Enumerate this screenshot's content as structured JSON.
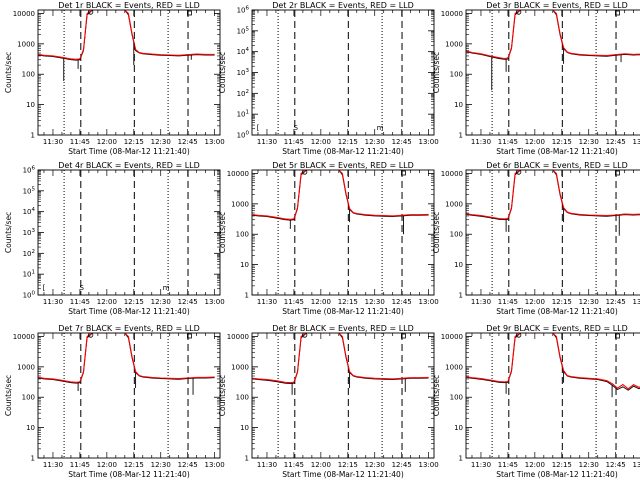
{
  "figure": {
    "shared": {
      "xlabel": "Start Time (08-Mar-12 11:21:40)",
      "ylabel": "Counts/sec",
      "x_tick_labels": [
        "11:30",
        "11:45",
        "12:00",
        "12:15",
        "12:30",
        "12:45",
        "13:00"
      ],
      "x_ticks_minutes": [
        30,
        45,
        60,
        75,
        90,
        105,
        120
      ],
      "x_range_minutes": [
        21.67,
        123
      ],
      "dashed_lines_minutes": [
        45.5,
        75.3,
        105.2
      ],
      "dotted_lines_minutes": [
        36.2,
        94.1
      ],
      "events_color": "#000000",
      "lld_color": "#ff0000"
    }
  },
  "chart_data": [
    {
      "type": "line",
      "title": "Det 1r BLACK = Events, RED = LLD",
      "panel": "det-1r",
      "yscale": "log",
      "ylim": [
        1,
        13000
      ],
      "y_tick_labels": [
        "1",
        "10",
        "100",
        "1000",
        "10000"
      ],
      "y_tick_values": [
        1,
        10,
        100,
        1000,
        10000
      ],
      "x": [
        22,
        25,
        30,
        35,
        40,
        43,
        45,
        47,
        49,
        52,
        55,
        60,
        65,
        70,
        72,
        74,
        76,
        78,
        80,
        85,
        90,
        95,
        100,
        105,
        110,
        115,
        120
      ],
      "series": [
        {
          "name": "Events",
          "values": [
            430,
            400,
            380,
            340,
            300,
            290,
            300,
            600,
            9000,
            13000,
            13000,
            13000,
            13000,
            13000,
            9000,
            2000,
            600,
            500,
            470,
            440,
            420,
            410,
            400,
            420,
            440,
            430,
            430
          ]
        },
        {
          "name": "LLD",
          "values": [
            450,
            420,
            400,
            360,
            320,
            310,
            320,
            650,
            10000,
            14000,
            14000,
            14000,
            14000,
            14000,
            10000,
            2200,
            650,
            520,
            490,
            460,
            440,
            430,
            420,
            440,
            460,
            450,
            450
          ]
        }
      ],
      "dips": [
        {
          "x": 36,
          "y": 60
        },
        {
          "x": 44,
          "y": 150
        },
        {
          "x": 75,
          "y": 200
        },
        {
          "x": 107,
          "y": 300
        }
      ]
    },
    {
      "type": "line",
      "title": "Det 2r BLACK = Events, RED = LLD",
      "panel": "det-2r",
      "yscale": "log",
      "ylim": [
        1,
        1000000
      ],
      "y_tick_labels": [
        "10^0",
        "10^1",
        "10^2",
        "10^3",
        "10^4",
        "10^5",
        "10^6"
      ],
      "y_tick_values": [
        1,
        10,
        100,
        1000,
        10000,
        100000,
        1000000
      ],
      "x": [],
      "series": [],
      "dips": []
    },
    {
      "type": "line",
      "title": "Det 3r BLACK = Events, RED = LLD",
      "panel": "det-3r",
      "yscale": "log",
      "ylim": [
        1,
        13000
      ],
      "y_tick_labels": [
        "1",
        "10",
        "100",
        "1000",
        "10000"
      ],
      "y_tick_values": [
        1,
        10,
        100,
        1000,
        10000
      ],
      "x": [
        22,
        25,
        30,
        35,
        40,
        43,
        45,
        47,
        49,
        52,
        55,
        60,
        65,
        70,
        72,
        74,
        76,
        78,
        80,
        85,
        90,
        95,
        100,
        105,
        110,
        115,
        120
      ],
      "series": [
        {
          "name": "Events",
          "values": [
            550,
            500,
            450,
            380,
            330,
            310,
            320,
            700,
            9000,
            13000,
            13000,
            13000,
            13000,
            13000,
            9000,
            2000,
            700,
            520,
            470,
            430,
            410,
            400,
            390,
            420,
            450,
            430,
            440
          ]
        },
        {
          "name": "LLD",
          "values": [
            580,
            520,
            470,
            400,
            350,
            330,
            340,
            750,
            10000,
            14000,
            14000,
            14000,
            14000,
            14000,
            10000,
            2200,
            750,
            540,
            490,
            450,
            430,
            420,
            410,
            440,
            470,
            450,
            460
          ]
        }
      ],
      "dips": [
        {
          "x": 36,
          "y": 30
        },
        {
          "x": 44,
          "y": 120
        },
        {
          "x": 76,
          "y": 220
        },
        {
          "x": 108,
          "y": 250
        }
      ]
    },
    {
      "type": "line",
      "title": "Det 4r BLACK = Events, RED = LLD",
      "panel": "det-4r",
      "yscale": "log",
      "ylim": [
        1,
        1000000
      ],
      "y_tick_labels": [
        "10^0",
        "10^1",
        "10^2",
        "10^3",
        "10^4",
        "10^5",
        "10^6"
      ],
      "y_tick_values": [
        1,
        10,
        100,
        1000,
        10000,
        100000,
        1000000
      ],
      "x": [],
      "series": [],
      "dips": []
    },
    {
      "type": "line",
      "title": "Det 5r BLACK = Events, RED = LLD",
      "panel": "det-5r",
      "yscale": "log",
      "ylim": [
        1,
        13000
      ],
      "y_tick_labels": [
        "1",
        "10",
        "100",
        "1000",
        "10000"
      ],
      "y_tick_values": [
        1,
        10,
        100,
        1000,
        10000
      ],
      "x": [
        22,
        25,
        30,
        35,
        40,
        43,
        45,
        47,
        49,
        52,
        55,
        60,
        65,
        70,
        72,
        74,
        76,
        78,
        80,
        85,
        90,
        95,
        100,
        105,
        110,
        115,
        120
      ],
      "series": [
        {
          "name": "Events",
          "values": [
            420,
            400,
            380,
            340,
            300,
            290,
            300,
            700,
            9000,
            13000,
            13000,
            13000,
            13000,
            13000,
            9000,
            2000,
            650,
            500,
            460,
            420,
            400,
            390,
            380,
            400,
            420,
            420,
            430
          ]
        },
        {
          "name": "LLD",
          "values": [
            440,
            420,
            400,
            360,
            320,
            310,
            320,
            750,
            10000,
            14000,
            14000,
            14000,
            14000,
            14000,
            10000,
            2200,
            700,
            520,
            480,
            440,
            420,
            410,
            400,
            420,
            440,
            440,
            450
          ]
        }
      ],
      "dips": [
        {
          "x": 43,
          "y": 150
        },
        {
          "x": 76,
          "y": 250
        },
        {
          "x": 106,
          "y": 100
        }
      ]
    },
    {
      "type": "line",
      "title": "Det 6r BLACK = Events, RED = LLD",
      "panel": "det-6r",
      "yscale": "log",
      "ylim": [
        1,
        13000
      ],
      "y_tick_labels": [
        "1",
        "10",
        "100",
        "1000",
        "10000"
      ],
      "y_tick_values": [
        1,
        10,
        100,
        1000,
        10000
      ],
      "x": [
        22,
        25,
        30,
        35,
        40,
        43,
        45,
        47,
        49,
        52,
        55,
        60,
        65,
        70,
        72,
        74,
        76,
        78,
        80,
        85,
        90,
        95,
        100,
        105,
        110,
        115,
        120
      ],
      "series": [
        {
          "name": "Events",
          "values": [
            450,
            420,
            390,
            350,
            310,
            300,
            310,
            700,
            9000,
            13000,
            13000,
            13000,
            13000,
            13000,
            9000,
            2000,
            700,
            520,
            470,
            430,
            410,
            400,
            390,
            410,
            440,
            430,
            440
          ]
        },
        {
          "name": "LLD",
          "values": [
            470,
            440,
            410,
            370,
            330,
            320,
            330,
            750,
            10000,
            14000,
            14000,
            14000,
            14000,
            14000,
            10000,
            2200,
            750,
            540,
            490,
            450,
            430,
            420,
            410,
            430,
            460,
            450,
            460
          ]
        }
      ],
      "dips": [
        {
          "x": 44,
          "y": 120
        },
        {
          "x": 76,
          "y": 250
        },
        {
          "x": 107,
          "y": 90
        }
      ]
    },
    {
      "type": "line",
      "title": "Det 7r BLACK = Events, RED = LLD",
      "panel": "det-7r",
      "yscale": "log",
      "ylim": [
        1,
        13000
      ],
      "y_tick_labels": [
        "1",
        "10",
        "100",
        "1000",
        "10000"
      ],
      "y_tick_values": [
        1,
        10,
        100,
        1000,
        10000
      ],
      "x": [
        22,
        25,
        30,
        35,
        40,
        43,
        45,
        47,
        49,
        52,
        55,
        60,
        65,
        70,
        72,
        74,
        76,
        78,
        80,
        85,
        90,
        95,
        100,
        105,
        110,
        115,
        120
      ],
      "series": [
        {
          "name": "Events",
          "values": [
            430,
            400,
            380,
            340,
            300,
            290,
            300,
            650,
            9000,
            13000,
            13000,
            13000,
            13000,
            13000,
            9000,
            2000,
            650,
            500,
            460,
            430,
            410,
            400,
            390,
            410,
            430,
            430,
            440
          ]
        },
        {
          "name": "LLD",
          "values": [
            450,
            420,
            400,
            360,
            320,
            310,
            320,
            700,
            10000,
            14000,
            14000,
            14000,
            14000,
            14000,
            10000,
            2200,
            700,
            520,
            480,
            450,
            430,
            420,
            410,
            430,
            450,
            450,
            460
          ]
        }
      ],
      "dips": [
        {
          "x": 44,
          "y": 160
        },
        {
          "x": 76,
          "y": 200
        },
        {
          "x": 108,
          "y": 120
        }
      ]
    },
    {
      "type": "line",
      "title": "Det 8r BLACK = Events, RED = LLD",
      "panel": "det-8r",
      "yscale": "log",
      "ylim": [
        1,
        13000
      ],
      "y_tick_labels": [
        "1",
        "10",
        "100",
        "1000",
        "10000"
      ],
      "y_tick_values": [
        1,
        10,
        100,
        1000,
        10000
      ],
      "x": [
        22,
        25,
        30,
        35,
        40,
        43,
        45,
        47,
        49,
        52,
        55,
        60,
        65,
        70,
        72,
        74,
        76,
        78,
        80,
        85,
        90,
        95,
        100,
        105,
        110,
        115,
        120
      ],
      "series": [
        {
          "name": "Events",
          "values": [
            400,
            380,
            360,
            330,
            290,
            280,
            290,
            650,
            9000,
            13000,
            13000,
            13000,
            13000,
            13000,
            9000,
            2000,
            650,
            500,
            460,
            420,
            400,
            390,
            380,
            400,
            420,
            420,
            430
          ]
        },
        {
          "name": "LLD",
          "values": [
            420,
            400,
            380,
            350,
            310,
            300,
            310,
            700,
            10000,
            14000,
            14000,
            14000,
            14000,
            14000,
            10000,
            2200,
            700,
            520,
            480,
            440,
            420,
            410,
            400,
            420,
            440,
            440,
            450
          ]
        }
      ],
      "dips": [
        {
          "x": 44,
          "y": 120
        },
        {
          "x": 76,
          "y": 200
        },
        {
          "x": 107,
          "y": 150
        }
      ]
    },
    {
      "type": "line",
      "title": "Det 9r BLACK = Events, RED = LLD",
      "panel": "det-9r",
      "yscale": "log",
      "ylim": [
        1,
        13000
      ],
      "y_tick_labels": [
        "1",
        "10",
        "100",
        "1000",
        "10000"
      ],
      "y_tick_values": [
        1,
        10,
        100,
        1000,
        10000
      ],
      "x": [
        22,
        25,
        30,
        35,
        40,
        43,
        45,
        47,
        49,
        52,
        55,
        60,
        65,
        70,
        72,
        74,
        76,
        78,
        80,
        85,
        90,
        95,
        100,
        103,
        106,
        109,
        112,
        115,
        118,
        120
      ],
      "series": [
        {
          "name": "Events",
          "values": [
            450,
            420,
            390,
            350,
            310,
            300,
            310,
            700,
            9000,
            13000,
            13000,
            13000,
            13000,
            13000,
            9000,
            2000,
            700,
            500,
            460,
            420,
            400,
            380,
            330,
            250,
            180,
            220,
            170,
            230,
            190,
            220
          ]
        },
        {
          "name": "LLD",
          "values": [
            470,
            440,
            410,
            370,
            330,
            320,
            330,
            750,
            10000,
            14000,
            14000,
            14000,
            14000,
            14000,
            10000,
            2200,
            750,
            520,
            480,
            440,
            420,
            400,
            350,
            280,
            200,
            260,
            190,
            260,
            210,
            240
          ]
        }
      ],
      "dips": [
        {
          "x": 44,
          "y": 130
        },
        {
          "x": 76,
          "y": 300
        },
        {
          "x": 103,
          "y": 100
        }
      ]
    }
  ]
}
